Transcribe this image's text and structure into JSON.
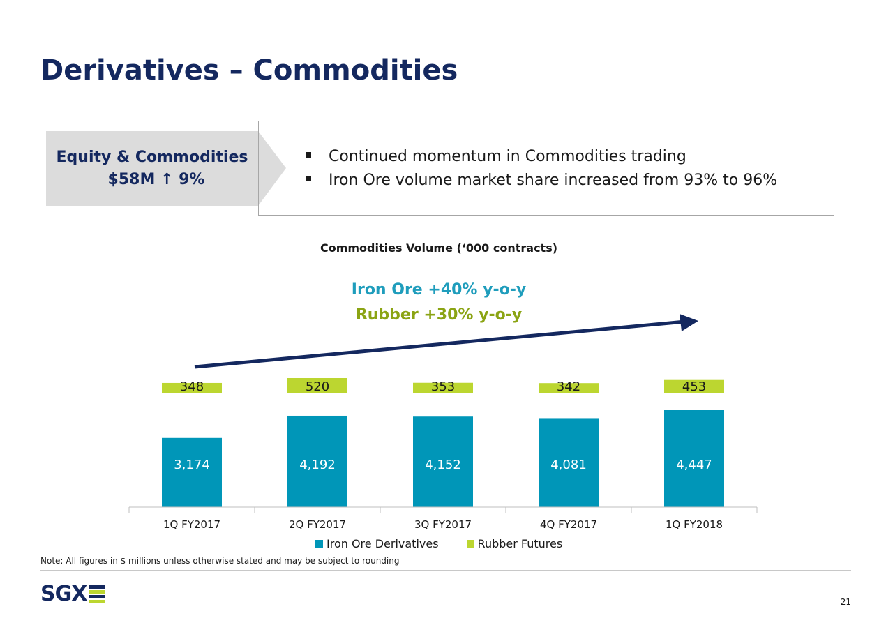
{
  "slide": {
    "title": "Derivatives – Commodities",
    "segment": {
      "name": "Equity & Commodities",
      "value": "$58M ↑ 9%"
    },
    "bullets": [
      "Continued momentum in Commodities trading",
      "Iron Ore volume market share increased from 93% to 96%"
    ],
    "growth": {
      "iron_ore": "Iron Ore +40%  y-o-y",
      "rubber": "Rubber +30% y-o-y"
    },
    "note": "Note:  All figures in $ millions unless otherwise stated and may be subject to rounding",
    "logo": "SGX",
    "page_number": "21"
  },
  "colors": {
    "title": "#14285f",
    "iron_ore": "#0096b8",
    "rubber": "#bcd630",
    "iron_ore_text": "#1f9dbc",
    "rubber_text": "#8ba414",
    "trend_arrow": "#14285f",
    "segment_box": "#dcdcdc"
  },
  "chart_data": {
    "type": "bar",
    "stacked": true,
    "title": "Commodities Volume (‘000 contracts)",
    "categories": [
      "1Q FY2017",
      "2Q FY2017",
      "3Q FY2017",
      "4Q FY2017",
      "1Q FY2018"
    ],
    "series": [
      {
        "name": "Iron Ore Derivatives",
        "values": [
          3174,
          4192,
          4152,
          4081,
          4447
        ],
        "labels": [
          "3,174",
          "4,192",
          "4,152",
          "4,081",
          "4,447"
        ]
      },
      {
        "name": "Rubber Futures",
        "values": [
          348,
          520,
          353,
          342,
          453
        ],
        "labels": [
          "348",
          "520",
          "353",
          "342",
          "453"
        ]
      }
    ],
    "legend": "bottom",
    "grid": false,
    "trend_arrow": true
  }
}
